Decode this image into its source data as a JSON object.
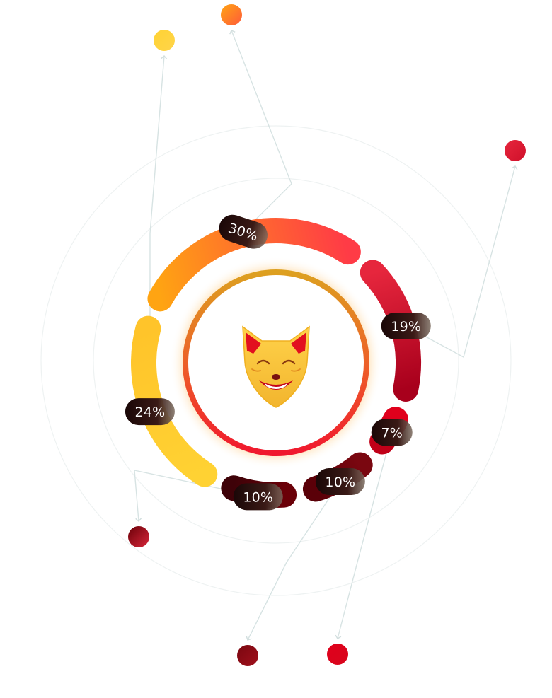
{
  "chart_data": {
    "type": "pie",
    "style": "segmented-donut",
    "center_logo": "fox-head-icon",
    "title": "",
    "slices": [
      {
        "label": "30%",
        "value": 30,
        "color_start": "#FFA412",
        "color_end": "#FF3B46",
        "dot_color": "#FF5A3A"
      },
      {
        "label": "19%",
        "value": 19,
        "color_start": "#E6263D",
        "color_end": "#A8001C",
        "dot_color": "#D0102A"
      },
      {
        "label": "7%",
        "value": 7,
        "color_start": "#E0001C",
        "color_end": "#C00018",
        "dot_color": "#D8061C"
      },
      {
        "label": "10%",
        "value": 10,
        "color_start": "#7A0710",
        "color_end": "#5A0008",
        "dot_color": "#A0101C"
      },
      {
        "label": "10%",
        "value": 10,
        "color_start": "#6A0008",
        "color_end": "#3E0208",
        "dot_color": "#D8263A"
      },
      {
        "label": "24%",
        "value": 24,
        "color_start": "#FFD233",
        "color_end": "#FFC42A",
        "dot_color": "#FFD54A"
      }
    ]
  },
  "colors": {
    "label_badge_dark": "#1E0A0A",
    "label_badge_end": "#6B5A50",
    "connector": "#D7E3E3",
    "inner_ring_start": "#F5A623",
    "inner_ring_end": "#F0182E",
    "fox_face": "#F5C540",
    "fox_ear": "#E20F1F"
  }
}
